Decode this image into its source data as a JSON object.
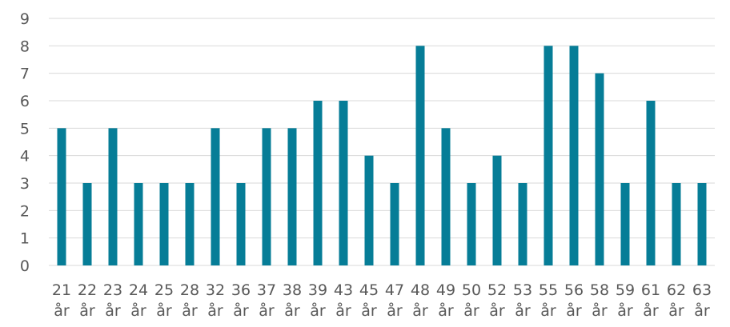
{
  "chart_data": {
    "type": "bar",
    "categories": [
      [
        "21",
        "år"
      ],
      [
        "22",
        "år"
      ],
      [
        "23",
        "år"
      ],
      [
        "24",
        "år"
      ],
      [
        "25",
        "år"
      ],
      [
        "28",
        "år"
      ],
      [
        "32",
        "år"
      ],
      [
        "36",
        "år"
      ],
      [
        "37",
        "år"
      ],
      [
        "38",
        "år"
      ],
      [
        "39",
        "år"
      ],
      [
        "43",
        "år"
      ],
      [
        "45",
        "år"
      ],
      [
        "47",
        "år"
      ],
      [
        "48",
        "år"
      ],
      [
        "49",
        "år"
      ],
      [
        "50",
        "år"
      ],
      [
        "52",
        "år"
      ],
      [
        "53",
        "år"
      ],
      [
        "55",
        "år"
      ],
      [
        "56",
        "år"
      ],
      [
        "58",
        "år"
      ],
      [
        "59",
        "år"
      ],
      [
        "61",
        "år"
      ],
      [
        "62",
        "år"
      ],
      [
        "63",
        "år"
      ]
    ],
    "values": [
      5,
      3,
      5,
      3,
      3,
      3,
      5,
      3,
      5,
      5,
      6,
      6,
      4,
      3,
      8,
      5,
      3,
      4,
      3,
      8,
      8,
      7,
      3,
      6,
      3,
      3
    ],
    "yticks": [
      "0",
      "1",
      "2",
      "3",
      "4",
      "5",
      "6",
      "7",
      "8",
      "9"
    ],
    "ylim": [
      0,
      9
    ],
    "grid": true,
    "colors": {
      "bar": "#067d97",
      "grid": "#d9d9d9",
      "text": "#595959"
    }
  }
}
